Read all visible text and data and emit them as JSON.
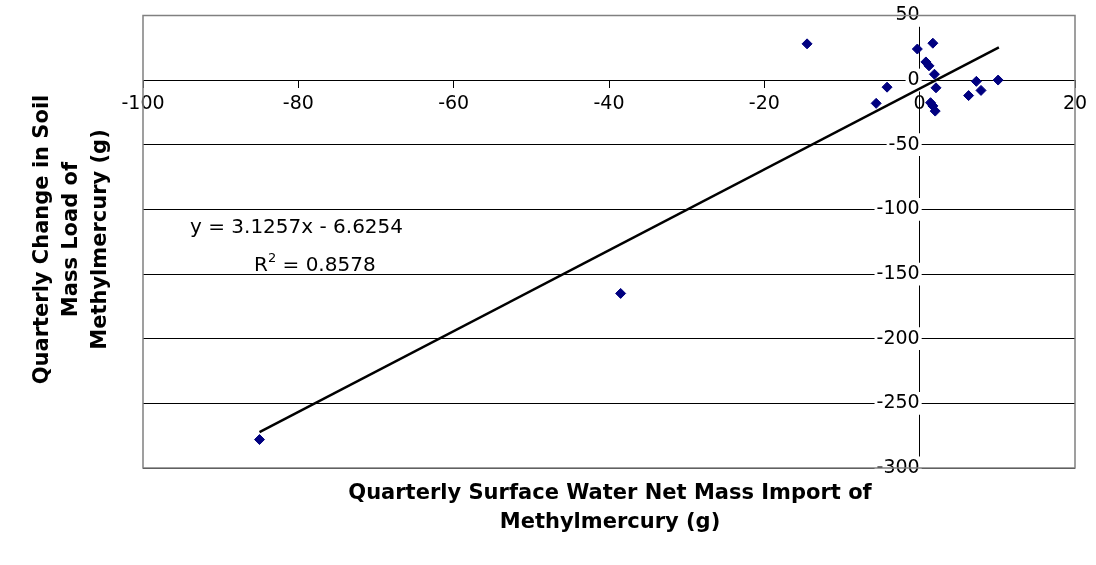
{
  "chart_data": {
    "type": "scatter",
    "xlabel": "Quarterly Surface Water Net Mass Import of Methylmercury (g)",
    "ylabel": "Quarterly Change in Soil Mass Load of Methylmercury (g)",
    "xlim": [
      -100,
      20
    ],
    "xticks": [
      -100,
      -80,
      -60,
      -40,
      -20,
      0,
      20
    ],
    "ylim": [
      -300,
      50
    ],
    "yticks": [
      -300,
      -250,
      -200,
      -150,
      -100,
      -50,
      0,
      50
    ],
    "grid": "y",
    "legend": false,
    "marker": "diamond",
    "annotations": [
      "y = 3.1257x - 6.6254",
      "R$^{2}$ = 0.8578"
    ],
    "series": [
      {
        "type": "scatter",
        "color": "#000080",
        "x": [
          -85.0,
          -38.5,
          -14.5,
          -0.3,
          1.7,
          0.8,
          1.2,
          1.9,
          2.1,
          -4.2,
          -5.6,
          1.4,
          1.7,
          2.0,
          6.3,
          7.3,
          7.9,
          10.1
        ],
        "values": [
          -278,
          -165,
          28,
          24,
          28.5,
          14,
          11,
          4.5,
          -6,
          -5.5,
          -18,
          -17.5,
          -20,
          -24,
          -12,
          -1,
          -8,
          0
        ]
      },
      {
        "type": "line",
        "color": "#000000",
        "marker": "none",
        "x": [
          -85,
          10.2
        ],
        "values": [
          -272.3,
          25.3
        ]
      }
    ]
  }
}
